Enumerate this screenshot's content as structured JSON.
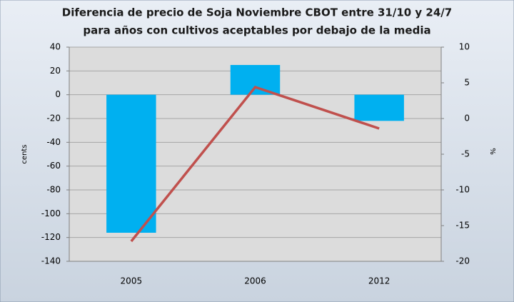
{
  "chart_data": {
    "type": "combo",
    "title_lines": [
      "Diferencia de precio de Soja Noviembre CBOT entre 31/10  y 24/7",
      "para años con cultivos aceptables por debajo de la media"
    ],
    "y_label": "cents",
    "y2_label": "%",
    "categories": [
      "2005",
      "2006",
      "2012"
    ],
    "series": [
      {
        "type": "bar",
        "color": "#00b0f0",
        "values": [
          -116,
          25,
          -22
        ]
      },
      {
        "type": "line",
        "axis": "y2",
        "color": "#c0504d",
        "values": [
          -17.2,
          4.4,
          -1.4
        ]
      }
    ],
    "ylim": [
      -140,
      40
    ],
    "yticks": [
      -140,
      -120,
      -100,
      -80,
      -60,
      -40,
      -20,
      0,
      20,
      40
    ],
    "y2lim": [
      -20,
      10
    ],
    "y2ticks": [
      -20,
      -15,
      -10,
      -5,
      0,
      5,
      10
    ],
    "grid": true
  }
}
